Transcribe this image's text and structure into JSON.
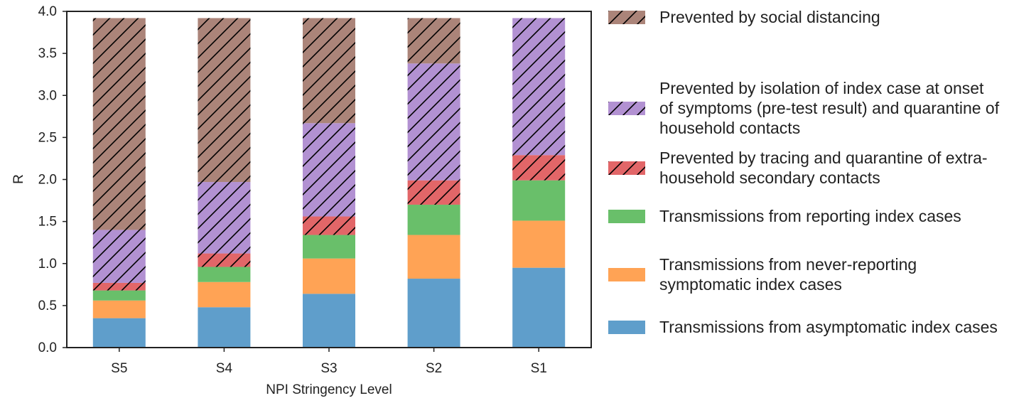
{
  "chart_data": {
    "type": "bar",
    "stacked": true,
    "xlabel": "NPI Stringency Level",
    "ylabel": "R",
    "ylim": [
      0,
      4.0
    ],
    "yticks": [
      "0.0",
      "0.5",
      "1.0",
      "1.5",
      "2.0",
      "2.5",
      "3.0",
      "3.5",
      "4.0"
    ],
    "categories": [
      "S5",
      "S4",
      "S3",
      "S2",
      "S1"
    ],
    "total": 3.92,
    "series": [
      {
        "name": "Transmissions from asymptomatic index cases",
        "values": [
          0.35,
          0.48,
          0.64,
          0.82,
          0.95
        ],
        "color": "#5f9ecb",
        "hatch": false
      },
      {
        "name": "Transmissions from never-reporting symptomatic index cases",
        "values": [
          0.21,
          0.3,
          0.42,
          0.52,
          0.56
        ],
        "color": "#ffa355",
        "hatch": false
      },
      {
        "name": "Transmissions from reporting index cases",
        "values": [
          0.12,
          0.18,
          0.28,
          0.36,
          0.48
        ],
        "color": "#69bf6a",
        "hatch": false
      },
      {
        "name": "Prevented by tracing and quarantine of extra-household secondary contacts",
        "values": [
          0.09,
          0.16,
          0.22,
          0.29,
          0.3
        ],
        "color": "#e26668",
        "hatch": true
      },
      {
        "name": "Prevented by isolation of index case at onset of symptoms (pre-test result) and quarantine of household contacts",
        "values": [
          0.63,
          0.85,
          1.11,
          1.39,
          1.63
        ],
        "color": "#b291d2",
        "hatch": true
      },
      {
        "name": "Prevented by social distancing",
        "values": [
          2.52,
          1.95,
          1.25,
          0.54,
          0.0
        ],
        "color": "#ab8479",
        "hatch": true
      }
    ],
    "legend_position": "right"
  }
}
